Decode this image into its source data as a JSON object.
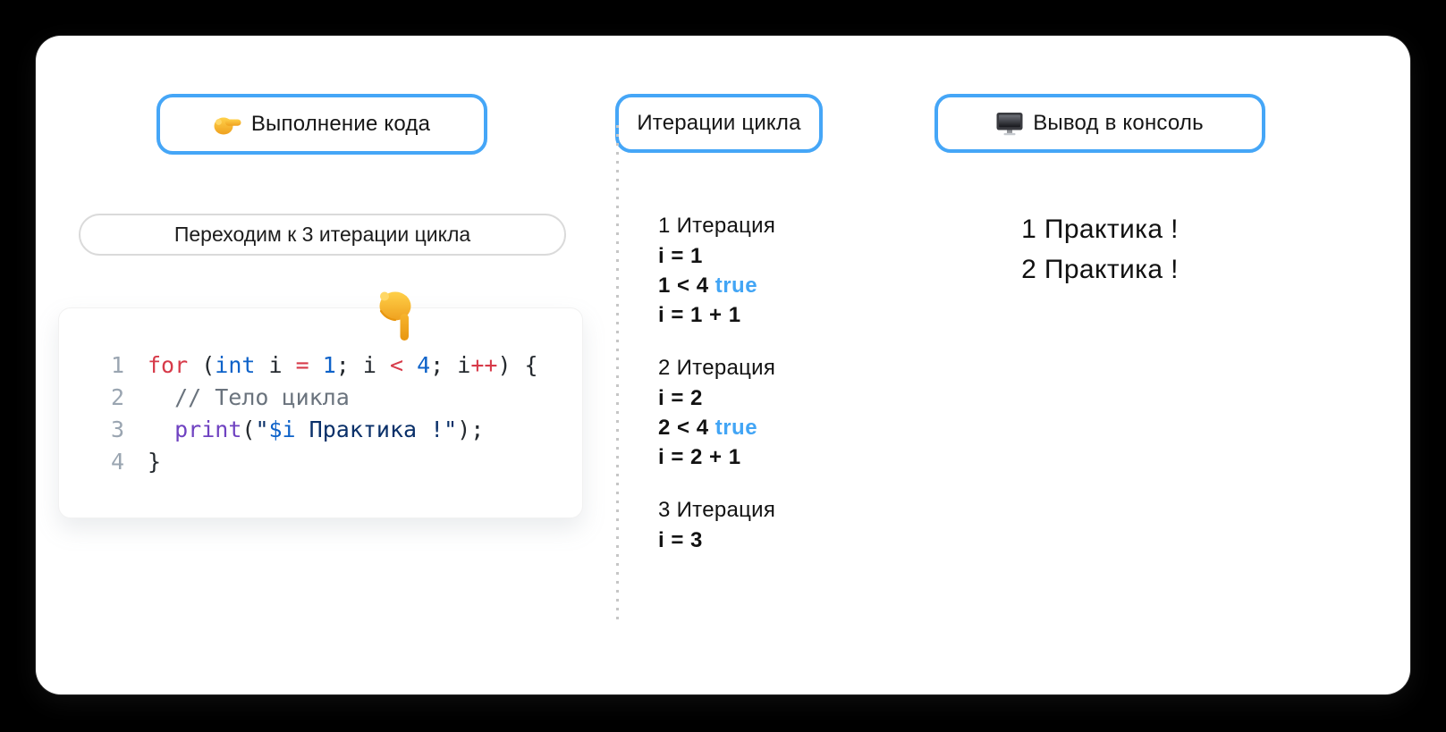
{
  "tabs": [
    {
      "label": "Выполнение кода",
      "icon": "pointing-right-icon"
    },
    {
      "label": "Итерации цикла",
      "icon": null
    },
    {
      "label": "Вывод в консоль",
      "icon": "monitor-icon"
    }
  ],
  "step_label": "Переходим к 3 итерации цикла",
  "code": {
    "lines": [
      {
        "num": "1",
        "tokens": [
          {
            "t": "for",
            "c": "kw"
          },
          {
            "t": " (",
            "c": "fg"
          },
          {
            "t": "int",
            "c": "type"
          },
          {
            "t": " i ",
            "c": "fg"
          },
          {
            "t": "=",
            "c": "kw"
          },
          {
            "t": " ",
            "c": "fg"
          },
          {
            "t": "1",
            "c": "num"
          },
          {
            "t": "; i ",
            "c": "fg"
          },
          {
            "t": "<",
            "c": "kw"
          },
          {
            "t": " ",
            "c": "fg"
          },
          {
            "t": "4",
            "c": "num"
          },
          {
            "t": "; i",
            "c": "fg"
          },
          {
            "t": "++",
            "c": "kw"
          },
          {
            "t": ") {",
            "c": "fg"
          }
        ]
      },
      {
        "num": "2",
        "tokens": [
          {
            "t": "  // Тело цикла",
            "c": "comment"
          }
        ]
      },
      {
        "num": "3",
        "tokens": [
          {
            "t": "  ",
            "c": "fg"
          },
          {
            "t": "print",
            "c": "fn"
          },
          {
            "t": "(",
            "c": "fg"
          },
          {
            "t": "\"",
            "c": "str"
          },
          {
            "t": "$i",
            "c": "interp"
          },
          {
            "t": " Практика !\"",
            "c": "str"
          },
          {
            "t": ");",
            "c": "fg"
          }
        ]
      },
      {
        "num": "4",
        "tokens": [
          {
            "t": "}",
            "c": "fg"
          }
        ]
      }
    ]
  },
  "iterations": [
    {
      "title": "1 Итерация",
      "lines": [
        [
          {
            "t": "i = 1",
            "c": "dark"
          }
        ],
        [
          {
            "t": "1 < 4 ",
            "c": "dark"
          },
          {
            "t": "true",
            "c": "blue"
          }
        ],
        [
          {
            "t": "i = 1 + 1",
            "c": "dark"
          }
        ]
      ]
    },
    {
      "title": "2 Итерация",
      "lines": [
        [
          {
            "t": "i = 2",
            "c": "dark"
          }
        ],
        [
          {
            "t": "2 < 4 ",
            "c": "dark"
          },
          {
            "t": "true",
            "c": "blue"
          }
        ],
        [
          {
            "t": "i = 2 + 1",
            "c": "dark"
          }
        ]
      ]
    },
    {
      "title": "3 Итерация",
      "lines": [
        [
          {
            "t": "i = 3",
            "c": "dark"
          }
        ]
      ]
    }
  ],
  "console": {
    "lines": [
      "1 Практика !",
      "2 Практика !"
    ]
  },
  "colors": {
    "background": "#000000",
    "card": "#FFFFFF",
    "accent_blue": "#45A6F7",
    "true_blue": "#42A5F5",
    "code_keyword": "#D73A49",
    "code_number": "#0D62C9",
    "code_function": "#6F42C1",
    "code_string": "#0A3069",
    "code_comment": "#6A737D",
    "code_text": "#24292E",
    "gutter": "#9AA5B1"
  }
}
